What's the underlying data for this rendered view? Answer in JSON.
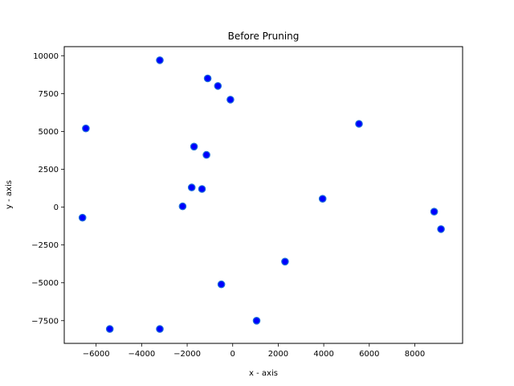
{
  "chart_data": {
    "type": "scatter",
    "title": "Before Pruning",
    "xlabel": "x - axis",
    "ylabel": "y - axis",
    "xlim": [
      -7400,
      10100
    ],
    "ylim": [
      -9000,
      10600
    ],
    "xticks": [
      -6000,
      -4000,
      -2000,
      0,
      2000,
      4000,
      6000,
      8000
    ],
    "yticks": [
      -7500,
      -5000,
      -2500,
      0,
      2500,
      5000,
      7500,
      10000
    ],
    "xtick_labels": [
      "−6000",
      "−4000",
      "−2000",
      "0",
      "2000",
      "4000",
      "6000",
      "8000"
    ],
    "ytick_labels": [
      "−7500",
      "−5000",
      "−2500",
      "0",
      "2500",
      "5000",
      "7500",
      "10000"
    ],
    "grid": false,
    "marker_color": "#0000ff",
    "marker_edge_color": "#1e6fd9",
    "points": [
      {
        "x": -3200,
        "y": 9700
      },
      {
        "x": -1100,
        "y": 8500
      },
      {
        "x": -650,
        "y": 8000
      },
      {
        "x": -100,
        "y": 7100
      },
      {
        "x": -6450,
        "y": 5200
      },
      {
        "x": 5550,
        "y": 5500
      },
      {
        "x": -1700,
        "y": 4000
      },
      {
        "x": -1150,
        "y": 3450
      },
      {
        "x": -1800,
        "y": 1300
      },
      {
        "x": -1350,
        "y": 1200
      },
      {
        "x": -2200,
        "y": 50
      },
      {
        "x": 3950,
        "y": 550
      },
      {
        "x": -6600,
        "y": -700
      },
      {
        "x": 8850,
        "y": -300
      },
      {
        "x": 9150,
        "y": -1450
      },
      {
        "x": 2300,
        "y": -3600
      },
      {
        "x": -500,
        "y": -5100
      },
      {
        "x": 1050,
        "y": -7500
      },
      {
        "x": -5400,
        "y": -8050
      },
      {
        "x": -3200,
        "y": -8050
      }
    ]
  }
}
